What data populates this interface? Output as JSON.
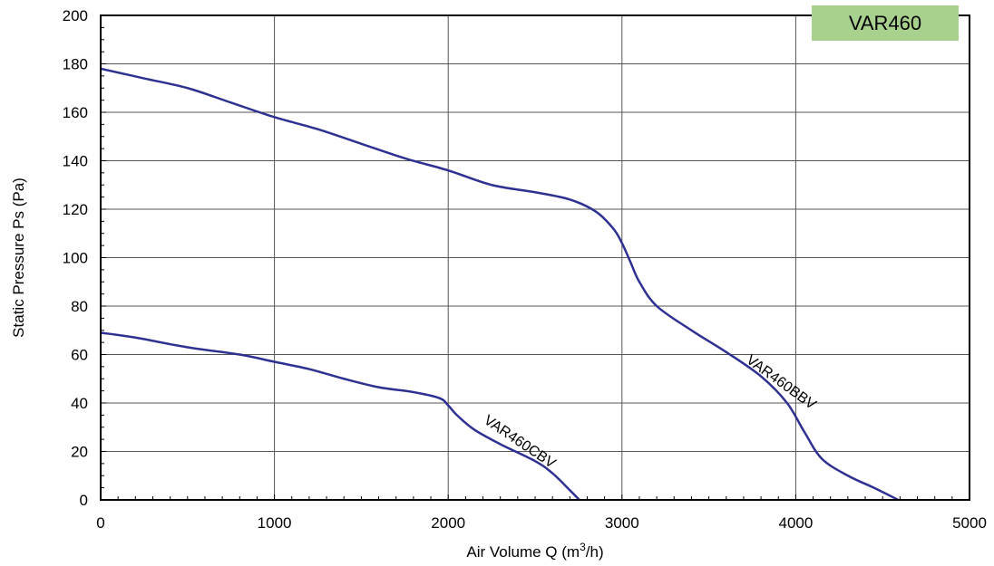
{
  "chart_data": {
    "type": "line",
    "title": "VAR460",
    "xlabel": "Air Volume Q (m",
    "xlabel_sup": "3",
    "xlabel_tail": "/h)",
    "ylabel": "Static Pressure Ps (Pa)",
    "xlim": [
      0,
      5000
    ],
    "ylim": [
      0,
      200
    ],
    "xticks": [
      "0",
      "1000",
      "2000",
      "3000",
      "4000",
      "5000"
    ],
    "yticks": [
      "0",
      "20",
      "40",
      "60",
      "80",
      "100",
      "120",
      "140",
      "160",
      "180",
      "200"
    ],
    "grid": true,
    "series": [
      {
        "name": "VAR460BBV",
        "color": "#2e3192",
        "points": [
          [
            0,
            178
          ],
          [
            250,
            174
          ],
          [
            500,
            170
          ],
          [
            750,
            164
          ],
          [
            1000,
            158
          ],
          [
            1250,
            153
          ],
          [
            1500,
            147
          ],
          [
            1750,
            141
          ],
          [
            2000,
            136
          ],
          [
            2250,
            130
          ],
          [
            2500,
            127
          ],
          [
            2700,
            124
          ],
          [
            2850,
            119
          ],
          [
            2950,
            112
          ],
          [
            3000,
            106
          ],
          [
            3050,
            98
          ],
          [
            3100,
            90
          ],
          [
            3200,
            80
          ],
          [
            3400,
            70
          ],
          [
            3600,
            61
          ],
          [
            3800,
            51
          ],
          [
            3950,
            40
          ],
          [
            4050,
            28
          ],
          [
            4150,
            17
          ],
          [
            4300,
            10
          ],
          [
            4450,
            5
          ],
          [
            4590,
            0
          ]
        ]
      },
      {
        "name": "VAR460CBV",
        "color": "#2e3192",
        "points": [
          [
            0,
            69
          ],
          [
            200,
            67
          ],
          [
            500,
            63
          ],
          [
            800,
            60
          ],
          [
            1000,
            57
          ],
          [
            1200,
            54
          ],
          [
            1400,
            50
          ],
          [
            1600,
            46.5
          ],
          [
            1800,
            44.5
          ],
          [
            1950,
            42
          ],
          [
            2000,
            39
          ],
          [
            2050,
            35
          ],
          [
            2150,
            29
          ],
          [
            2300,
            23
          ],
          [
            2500,
            16
          ],
          [
            2600,
            11
          ],
          [
            2700,
            4
          ],
          [
            2755,
            0
          ]
        ]
      }
    ]
  }
}
